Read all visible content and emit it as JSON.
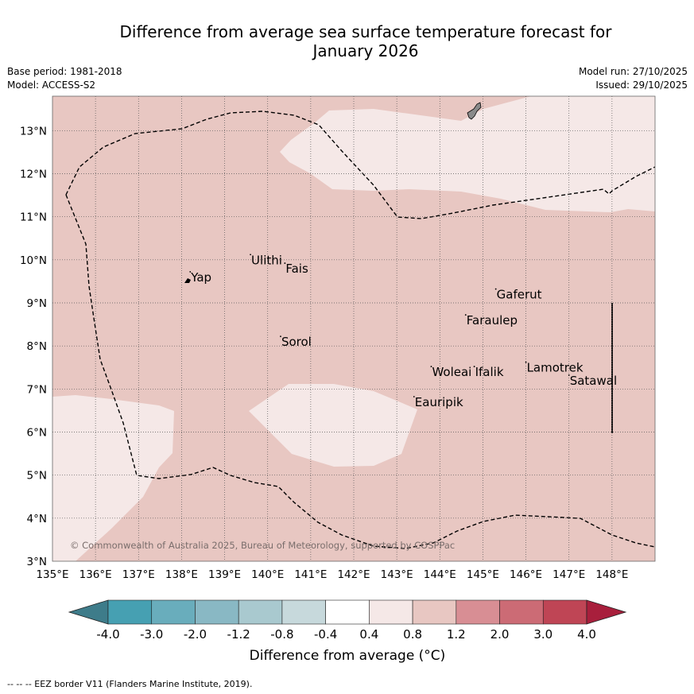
{
  "title": {
    "line1": "Difference from average sea surface temperature forecast for",
    "line2": "January 2026"
  },
  "meta": {
    "base_period": "Base period: 1981-2018",
    "model": "Model: ACCESS-S2",
    "model_run": "Model run: 27/10/2025",
    "issued": "Issued: 29/10/2025"
  },
  "axes": {
    "x_ticks": [
      "135°E",
      "136°E",
      "137°E",
      "138°E",
      "139°E",
      "140°E",
      "141°E",
      "142°E",
      "143°E",
      "144°E",
      "145°E",
      "146°E",
      "147°E",
      "148°E"
    ],
    "y_ticks": [
      "3°N",
      "4°N",
      "5°N",
      "6°N",
      "7°N",
      "8°N",
      "9°N",
      "10°N",
      "11°N",
      "12°N",
      "13°N"
    ]
  },
  "places": [
    {
      "name": "Yap",
      "lon": 138.2,
      "lat": 9.5
    },
    {
      "name": "Ulithi",
      "lon": 139.6,
      "lat": 9.9
    },
    {
      "name": "Fais",
      "lon": 140.4,
      "lat": 9.7
    },
    {
      "name": "Gaferut",
      "lon": 145.3,
      "lat": 9.1
    },
    {
      "name": "Faraulep",
      "lon": 144.6,
      "lat": 8.5
    },
    {
      "name": "Sorol",
      "lon": 140.3,
      "lat": 8.0
    },
    {
      "name": "Woleai",
      "lon": 143.8,
      "lat": 7.3
    },
    {
      "name": "Ifalik",
      "lon": 144.8,
      "lat": 7.3
    },
    {
      "name": "Lamotrek",
      "lon": 146.0,
      "lat": 7.4
    },
    {
      "name": "Satawal",
      "lon": 147.0,
      "lat": 7.1
    },
    {
      "name": "Eauripik",
      "lon": 143.4,
      "lat": 6.6
    }
  ],
  "copyright": "© Commonwealth of Australia 2025, Bureau of Meteorology, supported by COSPPac",
  "legend": {
    "title": "Difference from average (°C)",
    "ticks": [
      "-4.0",
      "-3.0",
      "-2.0",
      "-1.2",
      "-0.8",
      "-0.4",
      "0.4",
      "0.8",
      "1.2",
      "2.0",
      "3.0",
      "4.0"
    ],
    "colors": {
      "under": "#3e7c8a",
      "bins": [
        "#46a0b2",
        "#69adbc",
        "#89b8c4",
        "#a9c9cf",
        "#c7d9dc",
        "#ffffff",
        "#f5e8e7",
        "#e8c7c2",
        "#d88e94",
        "#cc6b75",
        "#bf4555"
      ],
      "over": "#a81f3c"
    }
  },
  "map_colors": {
    "base": "#e8c7c2",
    "light": "#f5e8e7",
    "island": "#8a8a8a"
  },
  "footer": "--  --  -- EEZ border V11 (Flanders Marine Institute, 2019)."
}
